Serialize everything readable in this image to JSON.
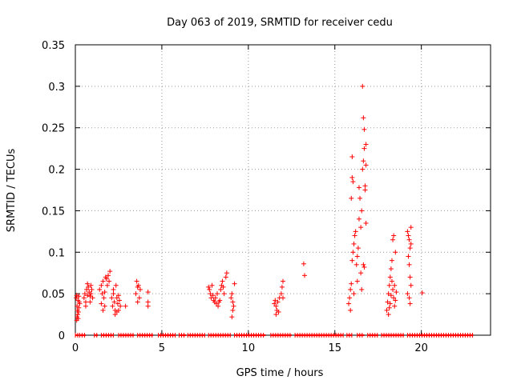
{
  "chart_data": {
    "type": "scatter",
    "title": "Day 063 of 2019, SRMTID for receiver cedu",
    "xlabel": "GPS time / hours",
    "ylabel": "SRMTID / TECUs",
    "xlim": [
      0,
      24
    ],
    "ylim": [
      0,
      0.35
    ],
    "x_ticks": [
      0,
      5,
      10,
      15,
      20
    ],
    "x_tick_labels": [
      "0",
      "5",
      "10",
      "15",
      "20"
    ],
    "y_ticks": [
      0,
      0.05,
      0.1,
      0.15,
      0.2,
      0.25,
      0.3,
      0.35
    ],
    "y_tick_labels": [
      "0",
      "0.05",
      "0.1",
      "0.15",
      "0.2",
      "0.25",
      "0.3",
      "0.35"
    ],
    "grid": true,
    "marker": "+",
    "color": "#ff0000",
    "series": [
      {
        "name": "SRMTID",
        "points": [
          [
            0.05,
            0.045
          ],
          [
            0.08,
            0.048
          ],
          [
            0.1,
            0.035
          ],
          [
            0.12,
            0.03
          ],
          [
            0.14,
            0.025
          ],
          [
            0.16,
            0.02
          ],
          [
            0.18,
            0.028
          ],
          [
            0.2,
            0.033
          ],
          [
            0.22,
            0.04
          ],
          [
            0.25,
            0.038
          ],
          [
            0.1,
            0.022
          ],
          [
            0.15,
            0.042
          ],
          [
            0.2,
            0.047
          ],
          [
            0.08,
            0.018
          ],
          [
            0.5,
            0.045
          ],
          [
            0.55,
            0.05
          ],
          [
            0.6,
            0.04
          ],
          [
            0.65,
            0.055
          ],
          [
            0.7,
            0.048
          ],
          [
            0.75,
            0.058
          ],
          [
            0.8,
            0.052
          ],
          [
            0.85,
            0.047
          ],
          [
            0.9,
            0.06
          ],
          [
            0.95,
            0.055
          ],
          [
            1.0,
            0.045
          ],
          [
            0.6,
            0.035
          ],
          [
            0.7,
            0.062
          ],
          [
            0.85,
            0.04
          ],
          [
            0.9,
            0.05
          ],
          [
            1.4,
            0.055
          ],
          [
            1.5,
            0.06
          ],
          [
            1.55,
            0.05
          ],
          [
            1.6,
            0.065
          ],
          [
            1.65,
            0.045
          ],
          [
            1.7,
            0.035
          ],
          [
            1.75,
            0.07
          ],
          [
            1.8,
            0.068
          ],
          [
            1.85,
            0.06
          ],
          [
            1.9,
            0.072
          ],
          [
            1.95,
            0.065
          ],
          [
            2.0,
            0.077
          ],
          [
            1.5,
            0.038
          ],
          [
            1.7,
            0.052
          ],
          [
            1.6,
            0.03
          ],
          [
            2.1,
            0.045
          ],
          [
            2.15,
            0.035
          ],
          [
            2.2,
            0.055
          ],
          [
            2.25,
            0.04
          ],
          [
            2.3,
            0.03
          ],
          [
            2.35,
            0.06
          ],
          [
            2.4,
            0.045
          ],
          [
            2.45,
            0.038
          ],
          [
            2.5,
            0.03
          ],
          [
            2.55,
            0.042
          ],
          [
            2.3,
            0.025
          ],
          [
            2.6,
            0.035
          ],
          [
            2.2,
            0.05
          ],
          [
            2.4,
            0.028
          ],
          [
            2.5,
            0.048
          ],
          [
            2.9,
            0.035
          ],
          [
            3.5,
            0.05
          ],
          [
            3.55,
            0.065
          ],
          [
            3.6,
            0.058
          ],
          [
            3.65,
            0.06
          ],
          [
            3.7,
            0.045
          ],
          [
            3.75,
            0.055
          ],
          [
            3.6,
            0.04
          ],
          [
            4.2,
            0.052
          ],
          [
            4.2,
            0.04
          ],
          [
            4.2,
            0.035
          ],
          [
            7.7,
            0.058
          ],
          [
            7.75,
            0.055
          ],
          [
            7.8,
            0.05
          ],
          [
            7.85,
            0.045
          ],
          [
            7.9,
            0.06
          ],
          [
            7.95,
            0.048
          ],
          [
            8.0,
            0.042
          ],
          [
            8.05,
            0.04
          ],
          [
            8.1,
            0.045
          ],
          [
            8.15,
            0.038
          ],
          [
            8.2,
            0.05
          ],
          [
            8.25,
            0.035
          ],
          [
            8.3,
            0.04
          ],
          [
            8.35,
            0.042
          ],
          [
            8.4,
            0.055
          ],
          [
            8.45,
            0.06
          ],
          [
            8.5,
            0.065
          ],
          [
            8.55,
            0.058
          ],
          [
            8.6,
            0.05
          ],
          [
            8.7,
            0.07
          ],
          [
            8.75,
            0.075
          ],
          [
            9.0,
            0.045
          ],
          [
            9.05,
            0.05
          ],
          [
            9.1,
            0.04
          ],
          [
            9.15,
            0.035
          ],
          [
            9.2,
            0.062
          ],
          [
            9.1,
            0.03
          ],
          [
            9.05,
            0.022
          ],
          [
            11.5,
            0.038
          ],
          [
            11.55,
            0.042
          ],
          [
            11.6,
            0.035
          ],
          [
            11.65,
            0.03
          ],
          [
            11.7,
            0.04
          ],
          [
            11.75,
            0.028
          ],
          [
            11.8,
            0.045
          ],
          [
            11.6,
            0.025
          ],
          [
            11.9,
            0.05
          ],
          [
            11.95,
            0.058
          ],
          [
            12.0,
            0.065
          ],
          [
            12.0,
            0.045
          ],
          [
            13.2,
            0.086
          ],
          [
            13.25,
            0.072
          ],
          [
            15.8,
            0.038
          ],
          [
            15.85,
            0.045
          ],
          [
            15.9,
            0.055
          ],
          [
            15.95,
            0.062
          ],
          [
            16.0,
            0.09
          ],
          [
            16.05,
            0.1
          ],
          [
            16.1,
            0.11
          ],
          [
            16.15,
            0.12
          ],
          [
            16.2,
            0.125
          ],
          [
            16.25,
            0.085
          ],
          [
            16.3,
            0.095
          ],
          [
            16.35,
            0.105
          ],
          [
            16.4,
            0.14
          ],
          [
            16.45,
            0.165
          ],
          [
            15.95,
            0.165
          ],
          [
            16.0,
            0.19
          ],
          [
            16.0,
            0.215
          ],
          [
            16.05,
            0.185
          ],
          [
            16.5,
            0.13
          ],
          [
            16.55,
            0.15
          ],
          [
            16.6,
            0.2
          ],
          [
            16.65,
            0.21
          ],
          [
            16.7,
            0.225
          ],
          [
            16.75,
            0.18
          ],
          [
            16.6,
            0.3
          ],
          [
            16.65,
            0.262
          ],
          [
            16.7,
            0.248
          ],
          [
            16.75,
            0.175
          ],
          [
            16.1,
            0.05
          ],
          [
            16.3,
            0.065
          ],
          [
            16.5,
            0.075
          ],
          [
            16.55,
            0.055
          ],
          [
            16.65,
            0.085
          ],
          [
            16.7,
            0.082
          ],
          [
            16.8,
            0.135
          ],
          [
            16.8,
            0.205
          ],
          [
            16.8,
            0.23
          ],
          [
            15.9,
            0.03
          ],
          [
            16.4,
            0.178
          ],
          [
            18.0,
            0.03
          ],
          [
            18.05,
            0.04
          ],
          [
            18.1,
            0.05
          ],
          [
            18.15,
            0.06
          ],
          [
            18.2,
            0.07
          ],
          [
            18.25,
            0.08
          ],
          [
            18.3,
            0.065
          ],
          [
            18.35,
            0.055
          ],
          [
            18.4,
            0.045
          ],
          [
            18.45,
            0.035
          ],
          [
            18.5,
            0.042
          ],
          [
            18.1,
            0.025
          ],
          [
            18.2,
            0.038
          ],
          [
            18.3,
            0.09
          ],
          [
            18.35,
            0.115
          ],
          [
            18.4,
            0.12
          ],
          [
            18.5,
            0.1
          ],
          [
            18.25,
            0.048
          ],
          [
            18.15,
            0.033
          ],
          [
            18.45,
            0.06
          ],
          [
            18.55,
            0.052
          ],
          [
            19.2,
            0.125
          ],
          [
            19.25,
            0.12
          ],
          [
            19.3,
            0.115
          ],
          [
            19.35,
            0.105
          ],
          [
            19.25,
            0.095
          ],
          [
            19.3,
            0.085
          ],
          [
            19.35,
            0.07
          ],
          [
            19.4,
            0.06
          ],
          [
            19.2,
            0.05
          ],
          [
            19.3,
            0.045
          ],
          [
            19.35,
            0.038
          ],
          [
            19.4,
            0.13
          ],
          [
            19.4,
            0.11
          ],
          [
            20.05,
            0.051
          ]
        ]
      }
    ],
    "zero_segments": [
      [
        0.0,
        0.2
      ],
      [
        0.25,
        0.6
      ],
      [
        1.1,
        1.3
      ],
      [
        1.5,
        2.2
      ],
      [
        2.5,
        3.4
      ],
      [
        3.6,
        4.5
      ],
      [
        4.8,
        5.8
      ],
      [
        6.0,
        6.4
      ],
      [
        6.5,
        7.5
      ],
      [
        7.7,
        9.0
      ],
      [
        9.2,
        11.0
      ],
      [
        11.3,
        12.5
      ],
      [
        12.7,
        15.5
      ],
      [
        15.7,
        16.0
      ],
      [
        16.3,
        16.7
      ],
      [
        16.9,
        17.5
      ],
      [
        17.7,
        19.0
      ],
      [
        19.2,
        23.0
      ]
    ]
  }
}
